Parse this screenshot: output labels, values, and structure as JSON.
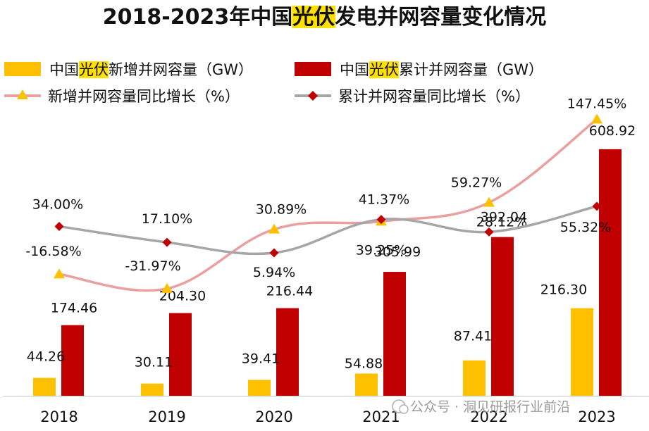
{
  "chart_data": {
    "type": "bar+line",
    "title": {
      "prefix": "2018-2023年中国",
      "highlight": "光伏",
      "suffix": "发电并网容量变化情况"
    },
    "categories": [
      "2018",
      "2019",
      "2020",
      "2021",
      "2022",
      "2023"
    ],
    "series": [
      {
        "name": "中国光伏新增并网容量（GW）",
        "legend_parts": [
          "中国",
          "光伏",
          "新增并网容量（GW）"
        ],
        "kind": "bar",
        "axis": "left",
        "color": "#FFC000",
        "values": [
          44.26,
          30.11,
          39.41,
          54.88,
          87.41,
          216.3
        ],
        "labels": [
          "44.26",
          "30.11",
          "39.41",
          "54.88",
          "87.41",
          "216.30"
        ]
      },
      {
        "name": "中国光伏累计并网容量（GW）",
        "legend_parts": [
          "中国",
          "光伏",
          "累计并网容量（GW）"
        ],
        "kind": "bar",
        "axis": "left",
        "color": "#C00000",
        "values": [
          174.46,
          204.3,
          216.44,
          305.99,
          392.04,
          608.92
        ],
        "labels": [
          "174.46",
          "204.30",
          "216.44",
          "305.99",
          "392.04",
          "608.92"
        ]
      },
      {
        "name": "新增并网容量同比增长（%）",
        "kind": "line",
        "axis": "right",
        "marker": "triangle",
        "line_color": "#E8A0A0",
        "marker_color": "#FFC000",
        "values": [
          -16.58,
          -31.97,
          30.89,
          39.25,
          59.27,
          147.45
        ],
        "labels": [
          "-16.58%",
          "-31.97%",
          "30.89%",
          "39.25%",
          "59.27%",
          "147.45%"
        ]
      },
      {
        "name": "累计并网容量同比增长（%）",
        "kind": "line",
        "axis": "right",
        "marker": "diamond",
        "line_color": "#A6A6A6",
        "marker_color": "#C00000",
        "values": [
          34.0,
          17.1,
          5.94,
          41.37,
          28.12,
          55.32
        ],
        "labels": [
          "34.00%",
          "17.10%",
          "5.94%",
          "41.37%",
          "28.12%",
          "55.32%"
        ]
      }
    ],
    "y_left_range": [
      0,
      800
    ],
    "y_right_range": [
      -100,
      200
    ],
    "grid": false,
    "legend_position": "top"
  },
  "watermark": {
    "text": "公众号 · 洞见研报行业前沿"
  }
}
